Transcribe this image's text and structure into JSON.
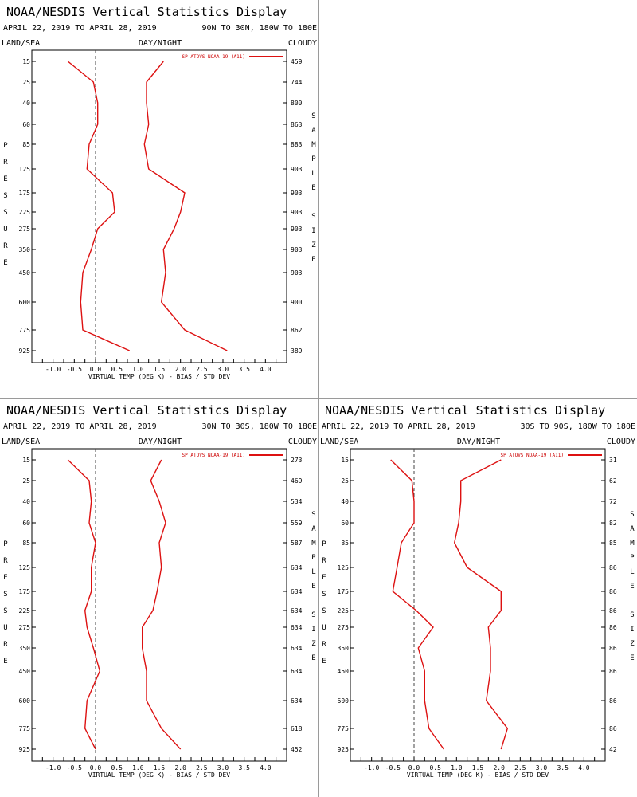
{
  "chart_data": [
    {
      "type": "line",
      "panel": "top-left",
      "title": "NOAA/NESDIS Vertical Statistics Display",
      "dates": "APRIL 22, 2019 TO APRIL 28, 2019",
      "region": "90N TO 30N, 180W TO 180E",
      "land_sea": "LAND/SEA",
      "day_night": "DAY/NIGHT",
      "cloudy": "CLOUDY",
      "legend": "SP ATOVS NOAA-19 (A11)",
      "xlabel": "VIRTUAL TEMP (DEG K) - BIAS / STD DEV",
      "ylabel": "PRESSURE",
      "right_label": "SAMPLE SIZE",
      "xlim": [
        -1.5,
        4.5
      ],
      "x_ticks": [
        "-1.0",
        "-0.5",
        "0.0",
        "0.5",
        "1.0",
        "1.5",
        "2.0",
        "2.5",
        "3.0",
        "3.5",
        "4.0"
      ],
      "pressure_levels": [
        "15",
        "25",
        "40",
        "60",
        "85",
        "125",
        "175",
        "225",
        "275",
        "350",
        "450",
        "600",
        "775",
        "925"
      ],
      "sample_size": [
        "459",
        "744",
        "800",
        "863",
        "883",
        "903",
        "903",
        "903",
        "903",
        "903",
        "903",
        "900",
        "862",
        "389"
      ],
      "series": [
        {
          "values": [
            -0.65,
            -0.05,
            0.05,
            0.05,
            -0.15,
            -0.2,
            0.4,
            0.45,
            0.05,
            -0.1,
            -0.3,
            -0.35,
            -0.3,
            0.8
          ]
        },
        {
          "values": [
            1.6,
            1.2,
            1.2,
            1.25,
            1.15,
            1.25,
            2.1,
            2.0,
            1.85,
            1.6,
            1.65,
            1.55,
            2.1,
            3.1
          ]
        }
      ],
      "line_color": "#dd1111"
    },
    {
      "type": "line",
      "panel": "bottom-left",
      "title": "NOAA/NESDIS Vertical Statistics Display",
      "dates": "APRIL 22, 2019 TO APRIL 28, 2019",
      "region": "30N TO 30S, 180W TO 180E",
      "land_sea": "LAND/SEA",
      "day_night": "DAY/NIGHT",
      "cloudy": "CLOUDY",
      "legend": "SP ATOVS NOAA-19 (A11)",
      "xlabel": "VIRTUAL TEMP (DEG K) - BIAS / STD DEV",
      "ylabel": "PRESSURE",
      "right_label": "SAMPLE SIZE",
      "xlim": [
        -1.5,
        4.5
      ],
      "x_ticks": [
        "-1.0",
        "-0.5",
        "0.0",
        "0.5",
        "1.0",
        "1.5",
        "2.0",
        "2.5",
        "3.0",
        "3.5",
        "4.0"
      ],
      "pressure_levels": [
        "15",
        "25",
        "40",
        "60",
        "85",
        "125",
        "175",
        "225",
        "275",
        "350",
        "450",
        "600",
        "775",
        "925"
      ],
      "sample_size": [
        "273",
        "469",
        "534",
        "559",
        "587",
        "634",
        "634",
        "634",
        "634",
        "634",
        "634",
        "634",
        "618",
        "452"
      ],
      "series": [
        {
          "values": [
            -0.65,
            -0.15,
            -0.1,
            -0.15,
            0.0,
            -0.1,
            -0.1,
            -0.25,
            -0.2,
            -0.05,
            0.1,
            -0.2,
            -0.25,
            0.0
          ]
        },
        {
          "values": [
            1.55,
            1.3,
            1.5,
            1.65,
            1.5,
            1.55,
            1.45,
            1.35,
            1.1,
            1.1,
            1.2,
            1.2,
            1.55,
            2.0
          ]
        }
      ],
      "line_color": "#dd1111"
    },
    {
      "type": "line",
      "panel": "bottom-right",
      "title": "NOAA/NESDIS Vertical Statistics Display",
      "dates": "APRIL 22, 2019 TO APRIL 28, 2019",
      "region": "30S TO 90S, 180W TO 180E",
      "land_sea": "LAND/SEA",
      "day_night": "DAY/NIGHT",
      "cloudy": "CLOUDY",
      "legend": "SP ATOVS NOAA-19 (A11)",
      "xlabel": "VIRTUAL TEMP (DEG K) - BIAS / STD DEV",
      "ylabel": "PRESSURE",
      "right_label": "SAMPLE SIZE",
      "xlim": [
        -1.5,
        4.5
      ],
      "x_ticks": [
        "-1.0",
        "-0.5",
        "0.0",
        "0.5",
        "1.0",
        "1.5",
        "2.0",
        "2.5",
        "3.0",
        "3.5",
        "4.0"
      ],
      "pressure_levels": [
        "15",
        "25",
        "40",
        "60",
        "85",
        "125",
        "175",
        "225",
        "275",
        "350",
        "450",
        "600",
        "775",
        "925"
      ],
      "sample_size": [
        "31",
        "62",
        "72",
        "82",
        "85",
        "86",
        "86",
        "86",
        "86",
        "86",
        "86",
        "86",
        "86",
        "42"
      ],
      "series": [
        {
          "values": [
            -0.55,
            -0.05,
            0.0,
            0.0,
            -0.3,
            -0.4,
            -0.5,
            0.05,
            0.45,
            0.1,
            0.25,
            0.25,
            0.35,
            0.7
          ]
        },
        {
          "values": [
            2.05,
            1.1,
            1.1,
            1.05,
            0.95,
            1.25,
            2.05,
            2.05,
            1.75,
            1.8,
            1.8,
            1.7,
            2.2,
            2.05
          ]
        }
      ],
      "line_color": "#dd1111"
    }
  ]
}
